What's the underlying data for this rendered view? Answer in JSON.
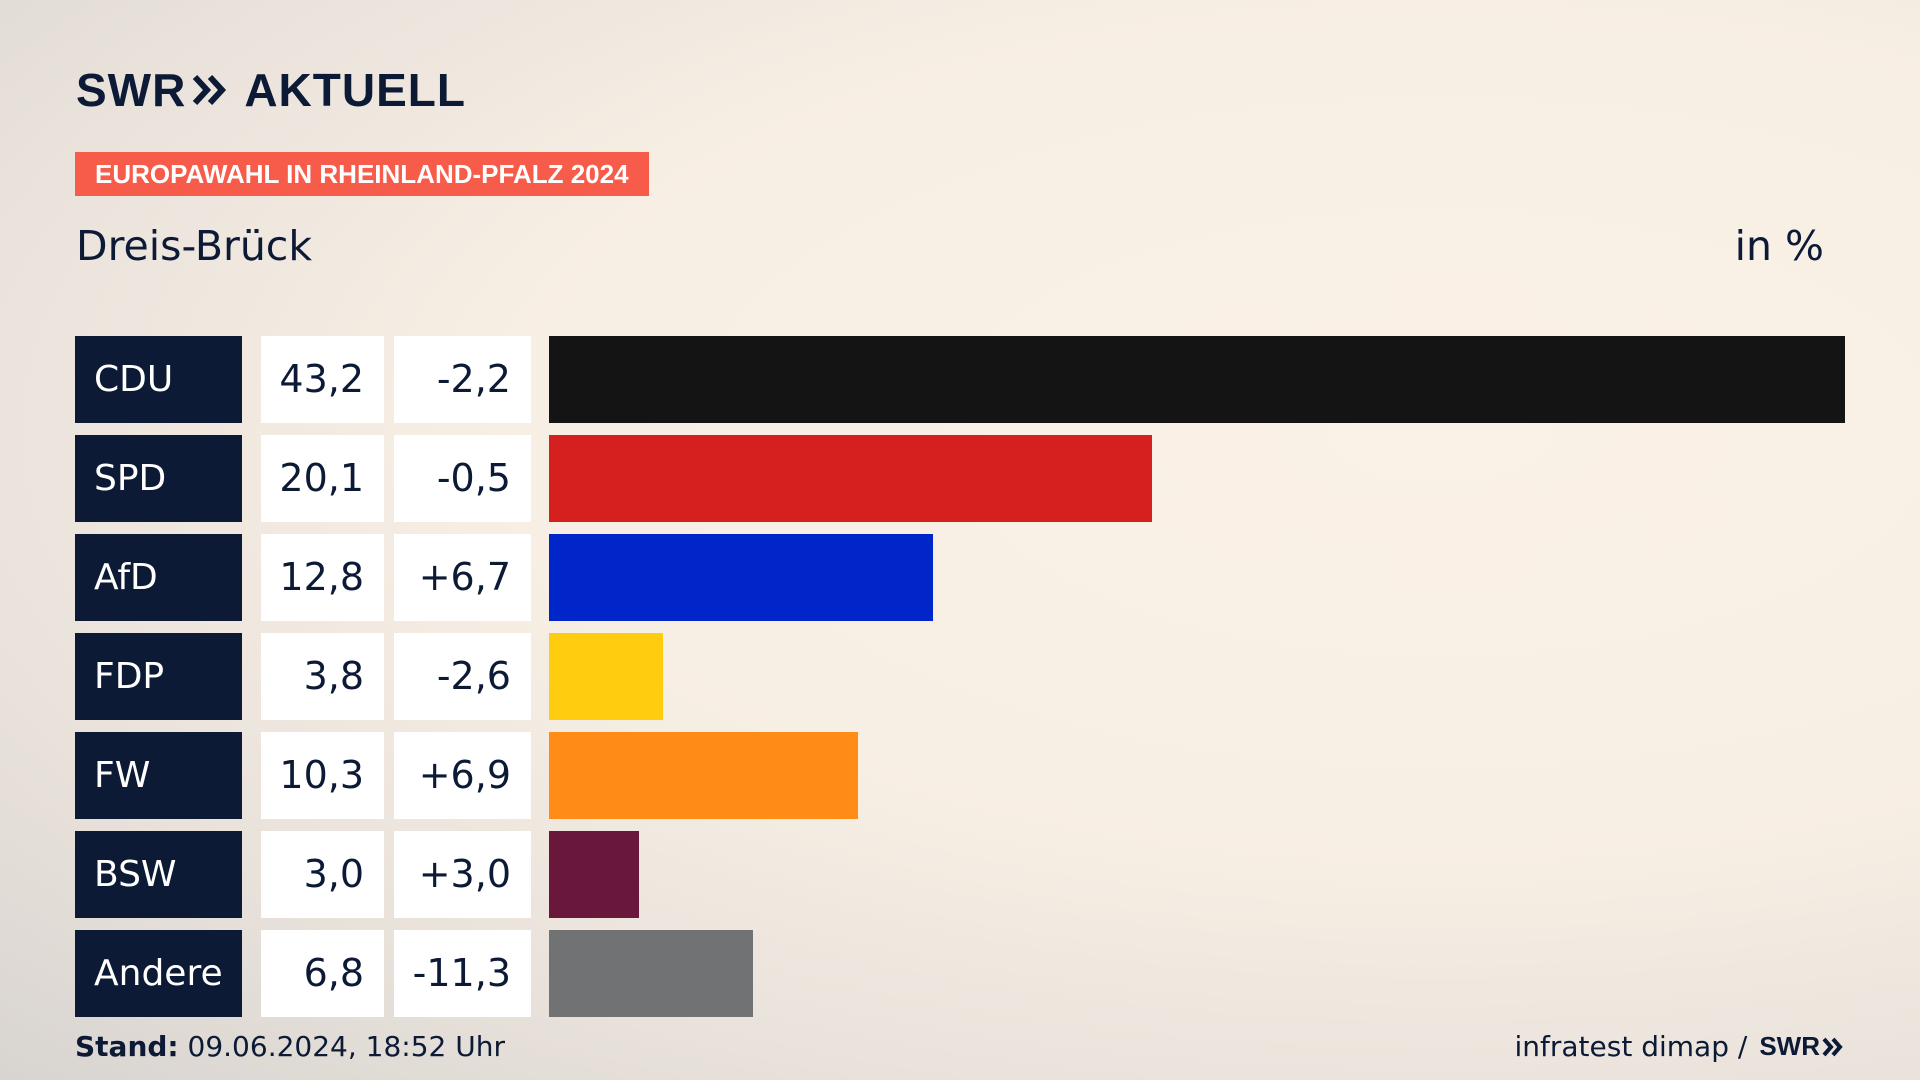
{
  "brand": {
    "left": "SWR",
    "right": "AKTUELL"
  },
  "banner": "EUROPAWAHL IN RHEINLAND-PFALZ 2024",
  "region": "Dreis-Brück",
  "unit": "in %",
  "chart_data": {
    "type": "bar",
    "orientation": "horizontal",
    "categories": [
      "CDU",
      "SPD",
      "AfD",
      "FDP",
      "FW",
      "BSW",
      "Andere"
    ],
    "values": [
      43.2,
      20.1,
      12.8,
      3.8,
      10.3,
      3.0,
      6.8
    ],
    "value_labels": [
      "43,2",
      "20,1",
      "12,8",
      "3,8",
      "10,3",
      "3,0",
      "6,8"
    ],
    "changes": [
      -2.2,
      -0.5,
      6.7,
      -2.6,
      6.9,
      3.0,
      -11.3
    ],
    "change_labels": [
      "-2,2",
      "-0,5",
      "+6,7",
      "-2,6",
      "+6,9",
      "+3,0",
      "-11,3"
    ],
    "colors": [
      "#141414",
      "#d61f1f",
      "#0026c9",
      "#ffcc10",
      "#ff8c16",
      "#6a173c",
      "#717273"
    ],
    "title": "",
    "xlabel": "",
    "ylabel": "",
    "xlim": [
      0,
      43.2
    ]
  },
  "footer": {
    "stand_label": "Stand:",
    "stand_value": "09.06.2024, 18:52 Uhr",
    "source": "infratest dimap /",
    "source_logo": "SWR"
  }
}
